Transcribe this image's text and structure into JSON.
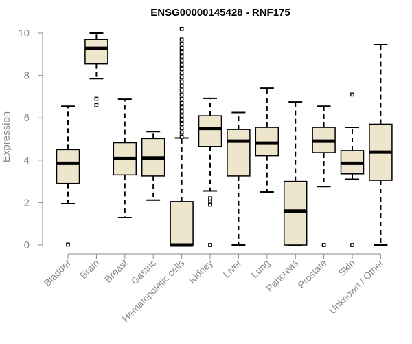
{
  "chart_data": {
    "type": "boxplot",
    "title": "ENSG00000145428 - RNF175",
    "xlabel": "",
    "ylabel": "Expression",
    "ylim": [
      0,
      10
    ],
    "yticks": [
      "0",
      "2",
      "4",
      "6",
      "8",
      "10"
    ],
    "grid": false,
    "colors": {
      "box_fill": "#ede6cc",
      "stroke": "#000000",
      "axis": "#888888"
    },
    "categories": [
      "Bladder",
      "Brain",
      "Breast",
      "Gastric",
      "Hematopoietic cells",
      "Kidney",
      "Liver",
      "Lung",
      "Pancreas",
      "Prostate",
      "Skin",
      "Unknown / Other"
    ],
    "boxes": [
      {
        "name": "Bladder",
        "whisker_low": 1.95,
        "q1": 2.9,
        "median": 3.85,
        "q3": 4.5,
        "whisker_high": 6.55,
        "outliers": [
          0.02
        ]
      },
      {
        "name": "Brain",
        "whisker_low": 7.85,
        "q1": 8.55,
        "median": 9.28,
        "q3": 9.7,
        "whisker_high": 10.0,
        "outliers": [
          6.6,
          6.9
        ]
      },
      {
        "name": "Breast",
        "whisker_low": 1.3,
        "q1": 3.3,
        "median": 4.08,
        "q3": 4.82,
        "whisker_high": 6.88,
        "outliers": []
      },
      {
        "name": "Gastric",
        "whisker_low": 2.12,
        "q1": 3.25,
        "median": 4.1,
        "q3": 5.02,
        "whisker_high": 5.35,
        "outliers": []
      },
      {
        "name": "Hematopoietic cells",
        "whisker_low": 0.0,
        "q1": 0.0,
        "median": 0.0,
        "q3": 2.05,
        "whisker_high": 5.05,
        "outliers": [
          5.1,
          5.3,
          5.5,
          5.7,
          5.9,
          6.1,
          6.3,
          6.5,
          6.7,
          6.9,
          7.1,
          7.3,
          7.5,
          7.7,
          7.9,
          8.1,
          8.3,
          8.5,
          8.7,
          8.9,
          9.1,
          9.3,
          9.5,
          9.7,
          10.2
        ]
      },
      {
        "name": "Kidney",
        "whisker_low": 2.55,
        "q1": 4.65,
        "median": 5.5,
        "q3": 6.1,
        "whisker_high": 6.92,
        "outliers": [
          0.0,
          1.9,
          2.05,
          2.2
        ]
      },
      {
        "name": "Liver",
        "whisker_low": 0.0,
        "q1": 3.25,
        "median": 4.9,
        "q3": 5.45,
        "whisker_high": 6.25,
        "outliers": []
      },
      {
        "name": "Lung",
        "whisker_low": 2.5,
        "q1": 4.2,
        "median": 4.8,
        "q3": 5.55,
        "whisker_high": 7.4,
        "outliers": []
      },
      {
        "name": "Pancreas",
        "whisker_low": 0.0,
        "q1": 0.0,
        "median": 1.6,
        "q3": 3.0,
        "whisker_high": 6.75,
        "outliers": []
      },
      {
        "name": "Prostate",
        "whisker_low": 2.75,
        "q1": 4.35,
        "median": 4.9,
        "q3": 5.55,
        "whisker_high": 6.55,
        "outliers": [
          0.0
        ]
      },
      {
        "name": "Skin",
        "whisker_low": 3.1,
        "q1": 3.35,
        "median": 3.85,
        "q3": 4.45,
        "whisker_high": 5.55,
        "outliers": [
          0.0,
          7.1
        ]
      },
      {
        "name": "Unknown / Other",
        "whisker_low": 0.0,
        "q1": 3.05,
        "median": 4.38,
        "q3": 5.7,
        "whisker_high": 9.45,
        "outliers": []
      }
    ]
  }
}
